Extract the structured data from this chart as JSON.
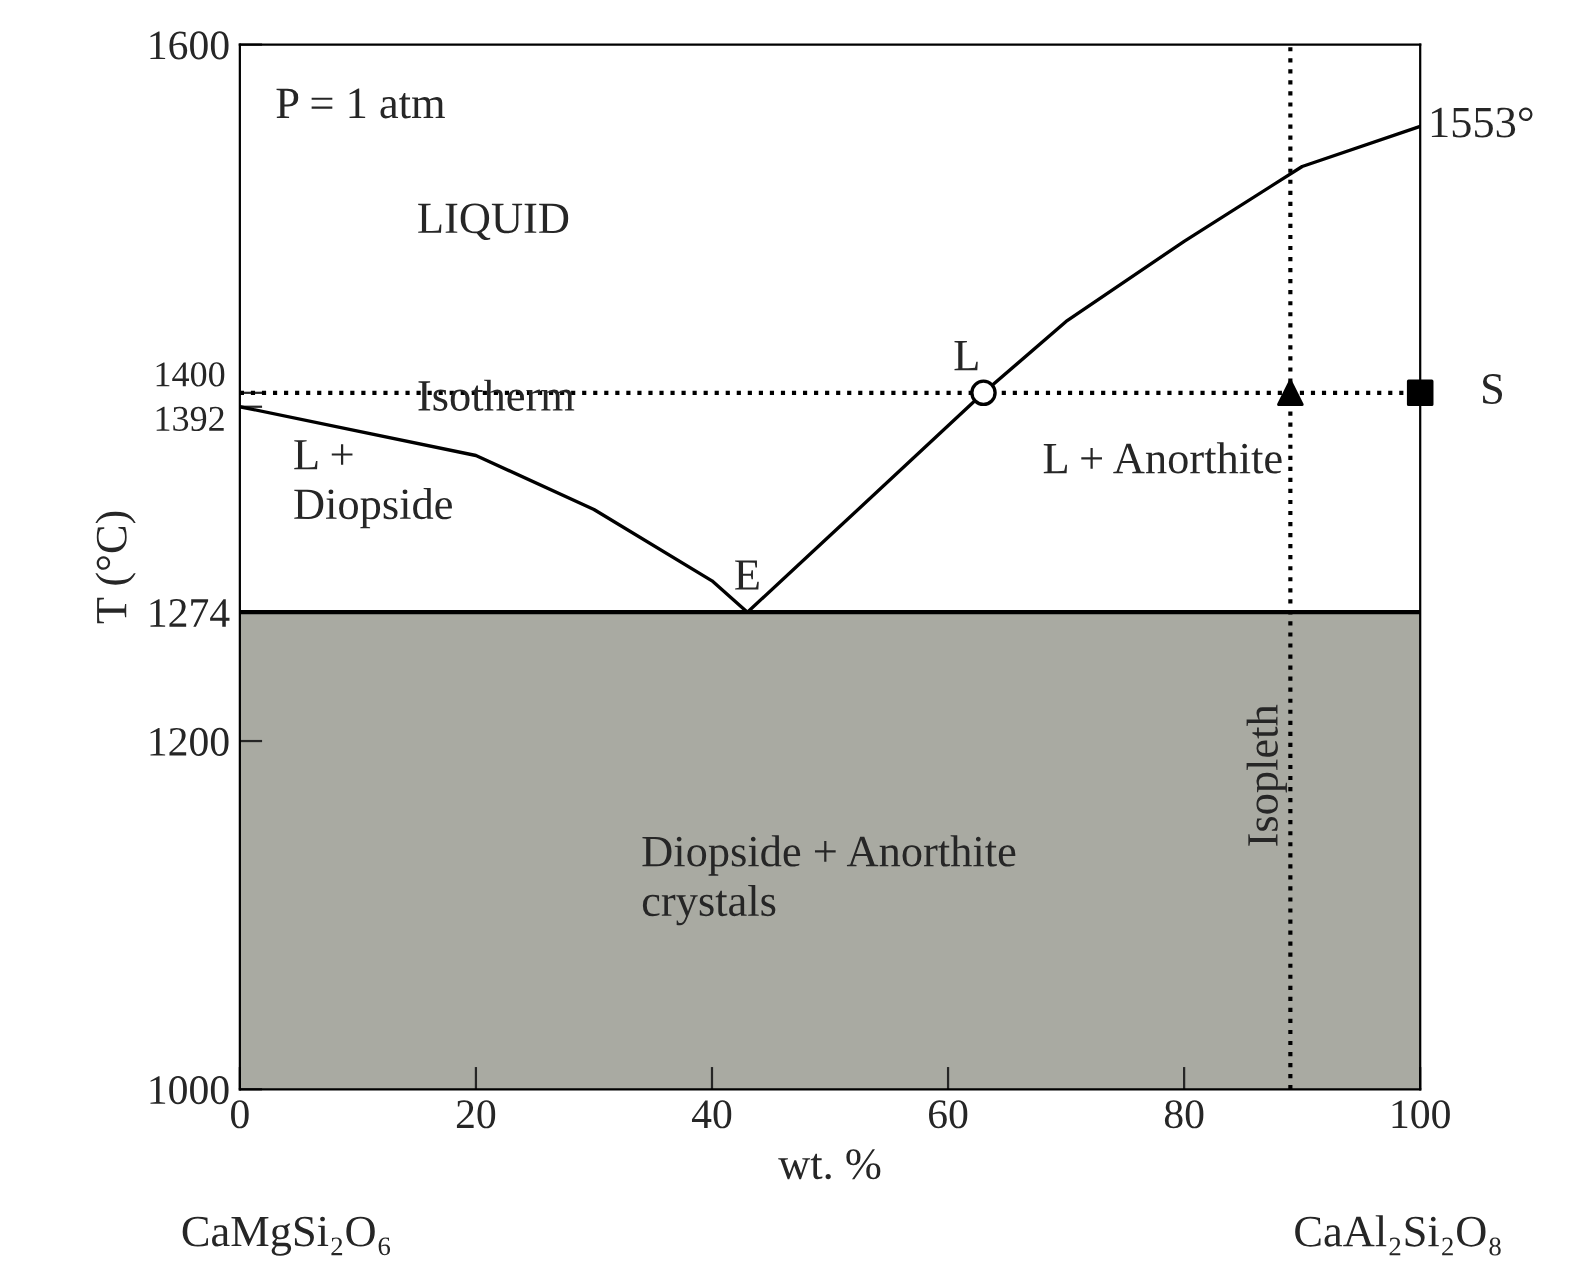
{
  "chart_data": {
    "type": "line",
    "xlabel": "wt. %",
    "ylabel": "T (°C)",
    "xlim": [
      0,
      100
    ],
    "ylim": [
      1000,
      1600
    ],
    "xticks": [
      0,
      20,
      40,
      60,
      80,
      100
    ],
    "yticks": [
      1000,
      1200,
      1274,
      1392,
      1400,
      1600
    ],
    "grid": false,
    "legend": false,
    "series": [
      {
        "color": "#000000",
        "marker": "none",
        "x": [
          0,
          10,
          20,
          30,
          40,
          43
        ],
        "values": [
          1392,
          1378,
          1364,
          1333,
          1292,
          1274
        ]
      },
      {
        "color": "#000000",
        "marker": "none",
        "x": [
          43,
          50,
          63,
          70,
          80,
          90,
          100
        ],
        "values": [
          1274,
          1318,
          1400,
          1441,
          1487,
          1530,
          1553
        ]
      },
      {
        "type": "scatter",
        "color": "#ffffff",
        "marker": "circle",
        "x": [
          63
        ],
        "values": [
          1400
        ]
      },
      {
        "type": "scatter",
        "color": "#000000",
        "marker": "triangle",
        "x": [
          89
        ],
        "values": [
          1400
        ]
      },
      {
        "type": "scatter",
        "color": "#000000",
        "marker": "square",
        "x": [
          100
        ],
        "values": [
          1400
        ]
      }
    ],
    "ref_lines": [
      {
        "axis": "y",
        "value": 1400,
        "line_style": "dotted",
        "color": "#000000"
      },
      {
        "axis": "x",
        "value": 89,
        "line_style": "dotted",
        "color": "#000000"
      },
      {
        "axis": "y",
        "value": 1274,
        "line_style": "solid",
        "color": "#000000"
      }
    ],
    "bands": [
      {
        "axis": "y",
        "from": 1000,
        "to": 1274,
        "color": "#a9aaa2"
      }
    ],
    "annotations": [
      {
        "text": "L",
        "x": 63,
        "y": 1400
      },
      {
        "text": "E",
        "x": 43,
        "y": 1274
      },
      {
        "text": "S",
        "x": 100,
        "y": 1400
      },
      {
        "text": "1553°",
        "x": 100,
        "y": 1553
      },
      "P = 1 atm",
      "LIQUID",
      "Isotherm",
      "L +\nDiopside",
      "L + Anorthite",
      "Diopside + Anorthite\ncrystals",
      "Isopleth",
      "CaMgSi₂O₆",
      "CaAl₂Si₂O₈"
    ]
  }
}
